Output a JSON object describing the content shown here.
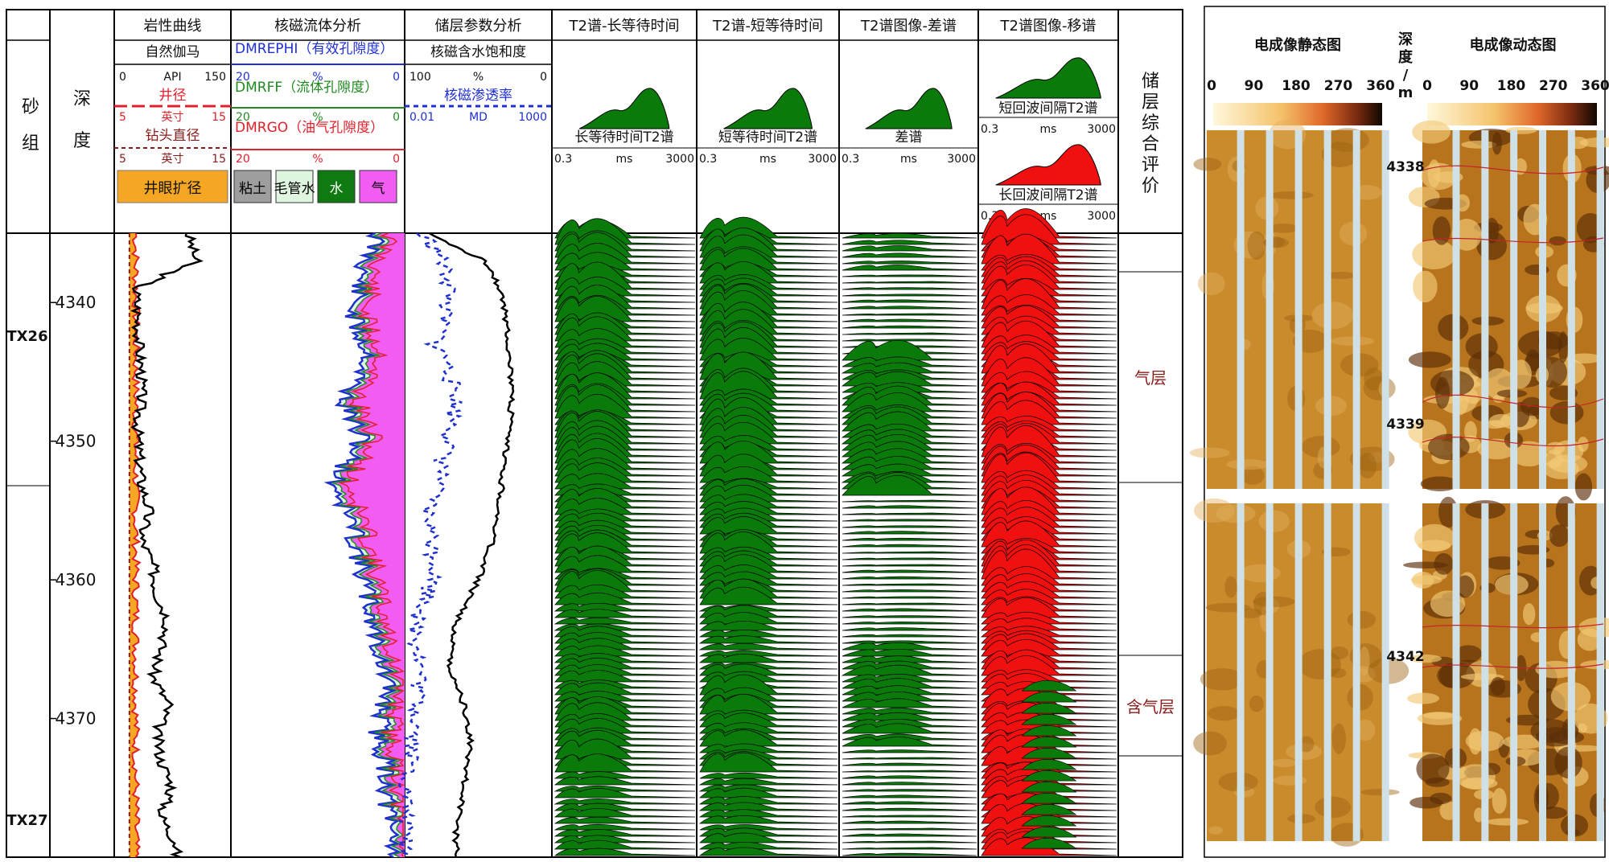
{
  "left_panel": {
    "col_sand": "砂组",
    "col_depth": "深度",
    "col_eval": "储层综合评价",
    "track_titles": [
      "岩性曲线",
      "核磁流体分析",
      "储层参数分析",
      "T2谱-长等待时间",
      "T2谱-短等待时间",
      "T2谱图像-差谱",
      "T2谱图像-移谱"
    ],
    "lith_legend": [
      {
        "name": "自然伽马",
        "unit": "API",
        "left": "0",
        "right": "150",
        "color": "#000000"
      },
      {
        "name": "井径",
        "unit": "英寸",
        "left": "5",
        "right": "15",
        "color": "#e0202a"
      },
      {
        "name": "钻头直径",
        "unit": "英寸",
        "left": "5",
        "right": "15",
        "color": "#8b1a1a"
      }
    ],
    "lith_fill_label": "井眼扩径",
    "fluid_legend": [
      {
        "name": "DMREPHI（有效孔隙度）",
        "unit": "%",
        "left": "20",
        "right": "0",
        "color": "#1f2fd0"
      },
      {
        "name": "DMRFF（流体孔隙度）",
        "unit": "%",
        "left": "20",
        "right": "0",
        "color": "#1f8a1f"
      },
      {
        "name": "DMRGO（油气孔隙度）",
        "unit": "%",
        "left": "20",
        "right": "0",
        "color": "#e0202a"
      }
    ],
    "fluid_fill_labels": [
      "粘土",
      "毛管水",
      "水",
      "气"
    ],
    "param_legend": [
      {
        "name": "核磁含水饱和度",
        "unit": "%",
        "left": "100",
        "right": "0",
        "color": "#000000"
      },
      {
        "name": "核磁渗透率",
        "unit": "MD",
        "left": "0.01",
        "right": "1000",
        "color": "#1f2fd0"
      }
    ],
    "t2_labels": {
      "long": "长等待时间T2谱",
      "short": "短等待时间T2谱",
      "diff": "差谱",
      "shift_short": "短回波间隔T2谱",
      "shift_long": "长回波间隔T2谱"
    },
    "t2_axis": {
      "min": "0.3",
      "unit": "ms",
      "max": "3000"
    },
    "depth_ticks": [
      "4340",
      "4350",
      "4360",
      "4370"
    ],
    "sand_groups": [
      "TX26",
      "TX27"
    ],
    "evaluations": [
      "气层",
      "含气层"
    ]
  },
  "right_panel": {
    "static_title": "电成像静态图",
    "dynamic_title": "电成像动态图",
    "depth_title": "深度/m",
    "azimuth_ticks": [
      "0",
      "90",
      "180",
      "270",
      "360"
    ],
    "depth_labels": [
      "4338",
      "4339",
      "4342"
    ]
  },
  "chart_data": {
    "type": "well-log",
    "depth_range": [
      4335,
      4380
    ],
    "depth_unit": "m",
    "gamma_ray_api": {
      "depth": [
        4335,
        4337,
        4339,
        4341,
        4343,
        4345,
        4347,
        4349,
        4351,
        4353,
        4355,
        4357,
        4359,
        4361,
        4363,
        4365,
        4367,
        4369,
        4371,
        4373,
        4375,
        4377,
        4379
      ],
      "values": [
        95,
        105,
        28,
        30,
        32,
        35,
        35,
        30,
        32,
        35,
        45,
        35,
        50,
        55,
        70,
        60,
        50,
        70,
        55,
        60,
        75,
        60,
        80
      ]
    },
    "effective_porosity_pct": {
      "depth": [
        4335,
        4338,
        4341,
        4344,
        4347,
        4350,
        4353,
        4356,
        4359,
        4362,
        4365,
        4368,
        4371,
        4374,
        4377,
        4379
      ],
      "values": [
        3,
        5,
        6,
        4,
        7,
        5,
        8,
        6,
        5,
        4,
        3,
        2,
        3,
        2,
        2,
        1
      ]
    },
    "water_saturation_pct": {
      "depth": [
        4335,
        4337,
        4339,
        4342,
        4345,
        4348,
        4351,
        4354,
        4357,
        4360,
        4363,
        4366,
        4369,
        4372,
        4375,
        4378
      ],
      "values": [
        85,
        45,
        35,
        30,
        28,
        28,
        32,
        35,
        40,
        50,
        65,
        70,
        60,
        55,
        60,
        65
      ]
    },
    "permeability_md": {
      "depth": [
        4335,
        4339,
        4343,
        4347,
        4351,
        4355,
        4359,
        4363,
        4367,
        4371,
        4375,
        4379
      ],
      "values": [
        0.02,
        0.3,
        0.1,
        0.5,
        0.2,
        0.05,
        0.1,
        0.02,
        0.03,
        0.02,
        0.01,
        0.01
      ]
    }
  }
}
